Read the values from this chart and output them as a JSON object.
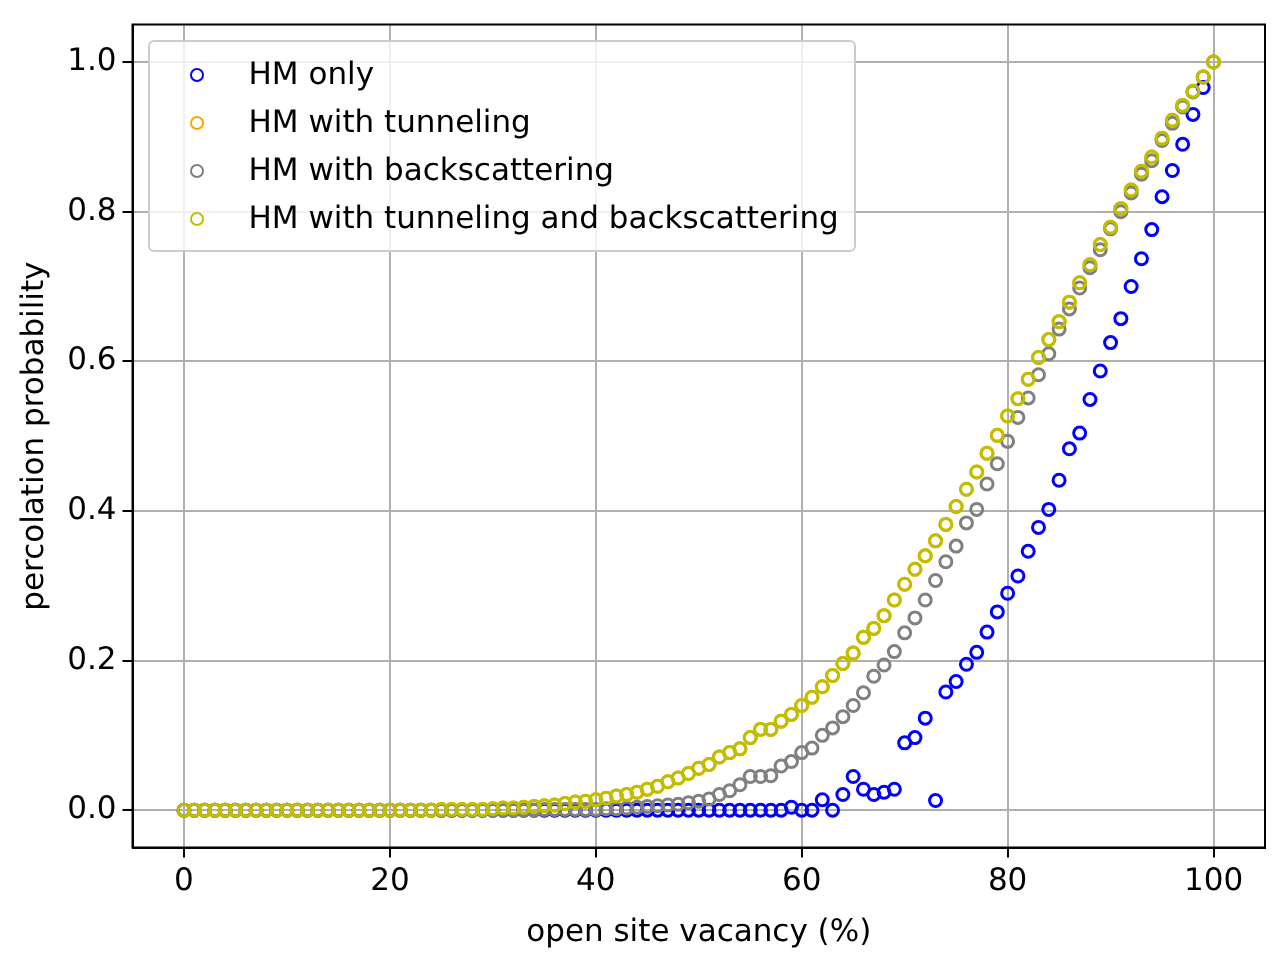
{
  "chart_data": {
    "type": "scatter",
    "xlabel": "open site vacancy (%)",
    "ylabel": "percolation probability",
    "x": [
      0,
      1,
      2,
      3,
      4,
      5,
      6,
      7,
      8,
      9,
      10,
      11,
      12,
      13,
      14,
      15,
      16,
      17,
      18,
      19,
      20,
      21,
      22,
      23,
      24,
      25,
      26,
      27,
      28,
      29,
      30,
      31,
      32,
      33,
      34,
      35,
      36,
      37,
      38,
      39,
      40,
      41,
      42,
      43,
      44,
      45,
      46,
      47,
      48,
      49,
      50,
      51,
      52,
      53,
      54,
      55,
      56,
      57,
      58,
      59,
      60,
      61,
      62,
      63,
      64,
      65,
      66,
      67,
      68,
      69,
      70,
      71,
      72,
      73,
      74,
      75,
      76,
      77,
      78,
      79,
      80,
      81,
      82,
      83,
      84,
      85,
      86,
      87,
      88,
      89,
      90,
      91,
      92,
      93,
      94,
      95,
      96,
      97,
      98,
      99,
      100
    ],
    "series": [
      {
        "name": "HM only",
        "color": "#0000ff",
        "values": [
          0,
          0,
          0,
          0,
          0,
          0,
          0,
          0,
          0,
          0,
          0,
          0,
          0,
          0,
          0,
          0,
          0,
          0,
          0,
          0,
          0,
          0,
          0,
          0,
          0,
          0,
          0,
          0,
          0,
          0,
          0,
          0,
          0,
          0,
          0,
          0,
          0,
          0,
          0,
          0,
          0,
          0,
          0,
          0,
          0,
          0,
          0,
          0,
          0,
          0,
          0,
          0,
          0,
          0,
          0,
          0,
          0,
          0,
          0,
          0.004,
          0,
          0,
          0.014,
          0,
          0.021,
          0.045,
          0.028,
          0.021,
          0.024,
          0.028,
          0.09,
          0.097,
          0.123,
          0.013,
          0.158,
          0.172,
          0.195,
          0.211,
          0.238,
          0.265,
          0.29,
          0.313,
          0.346,
          0.378,
          0.402,
          0.441,
          0.483,
          0.504,
          0.549,
          0.587,
          0.625,
          0.657,
          0.7,
          0.737,
          0.776,
          0.82,
          0.855,
          0.89,
          0.93,
          0.966,
          null
        ]
      },
      {
        "name": "HM with tunneling",
        "color": "#ffa500",
        "values": [
          0,
          0,
          0,
          0,
          0,
          0,
          0,
          0,
          0,
          0,
          0,
          0,
          0,
          0,
          0,
          0,
          0,
          0,
          0,
          0,
          0,
          0,
          0,
          0,
          0,
          0.001,
          0.001,
          0.001,
          0.001,
          0.001,
          0.002,
          0.003,
          0.003,
          0.004,
          0.005,
          0.006,
          0.007,
          0.009,
          0.011,
          0.012,
          0.014,
          0.016,
          0.019,
          0.021,
          0.024,
          0.028,
          0.032,
          0.038,
          0.043,
          0.049,
          0.056,
          0.061,
          0.071,
          0.077,
          0.082,
          0.097,
          0.108,
          0.108,
          0.119,
          0.128,
          0.14,
          0.151,
          0.165,
          0.18,
          0.196,
          0.21,
          0.231,
          0.243,
          0.26,
          0.281,
          0.302,
          0.322,
          0.34,
          0.36,
          0.382,
          0.406,
          0.429,
          0.452,
          0.477,
          0.501,
          0.527,
          0.55,
          0.576,
          0.605,
          0.629,
          0.653,
          0.679,
          0.705,
          0.729,
          0.756,
          0.779,
          0.804,
          0.829,
          0.854,
          0.873,
          0.898,
          0.922,
          0.942,
          0.961,
          0.98,
          1.0
        ]
      },
      {
        "name": "HM with backscattering",
        "color": "#808080",
        "values": [
          0,
          0,
          0,
          0,
          0,
          0,
          0,
          0,
          0,
          0,
          0,
          0,
          0,
          0,
          0,
          0,
          0,
          0,
          0,
          0,
          0,
          0,
          0,
          0,
          0,
          0,
          0,
          0,
          0,
          0,
          0,
          0,
          0,
          0,
          0,
          0.001,
          0.001,
          0.001,
          0.001,
          0.001,
          0.001,
          0.002,
          0.002,
          0.003,
          0.004,
          0.005,
          0.006,
          0.007,
          0.008,
          0.01,
          0.012,
          0.015,
          0.021,
          0.026,
          0.034,
          0.045,
          0.045,
          0.046,
          0.059,
          0.065,
          0.077,
          0.083,
          0.1,
          0.11,
          0.125,
          0.14,
          0.157,
          0.179,
          0.194,
          0.212,
          0.237,
          0.257,
          0.281,
          0.307,
          0.332,
          0.353,
          0.384,
          0.402,
          0.436,
          0.463,
          0.493,
          0.525,
          0.551,
          0.582,
          0.61,
          0.643,
          0.67,
          0.698,
          0.725,
          0.749,
          0.777,
          0.8,
          0.825,
          0.85,
          0.868,
          0.895,
          0.918,
          0.94,
          0.96,
          0.98,
          1.0
        ]
      },
      {
        "name": "HM with tunneling and backscattering",
        "color": "#bfbf00",
        "values": [
          0,
          0,
          0,
          0,
          0,
          0,
          0,
          0,
          0,
          0,
          0,
          0,
          0,
          0,
          0,
          0,
          0,
          0,
          0,
          0,
          0,
          0,
          0,
          0,
          0,
          0.001,
          0.001,
          0.001,
          0.001,
          0.001,
          0.002,
          0.003,
          0.003,
          0.004,
          0.005,
          0.006,
          0.007,
          0.009,
          0.011,
          0.012,
          0.014,
          0.016,
          0.019,
          0.021,
          0.024,
          0.028,
          0.032,
          0.038,
          0.043,
          0.049,
          0.056,
          0.061,
          0.071,
          0.077,
          0.082,
          0.097,
          0.108,
          0.108,
          0.119,
          0.128,
          0.14,
          0.151,
          0.165,
          0.18,
          0.196,
          0.21,
          0.231,
          0.243,
          0.26,
          0.281,
          0.302,
          0.322,
          0.34,
          0.36,
          0.382,
          0.406,
          0.429,
          0.452,
          0.477,
          0.501,
          0.527,
          0.55,
          0.576,
          0.605,
          0.629,
          0.653,
          0.679,
          0.705,
          0.729,
          0.756,
          0.779,
          0.804,
          0.829,
          0.854,
          0.873,
          0.898,
          0.922,
          0.942,
          0.961,
          0.98,
          1.0
        ]
      }
    ],
    "xlim": [
      -5,
      105
    ],
    "xticks": [
      0,
      20,
      40,
      60,
      80,
      100
    ],
    "ylim": [
      -0.05,
      1.05
    ],
    "yticks": [
      {
        "value": 0,
        "label": "0.0"
      },
      {
        "value": 0.2,
        "label": "0.2"
      },
      {
        "value": 0.4,
        "label": "0.4"
      },
      {
        "value": 0.6,
        "label": "0.6"
      },
      {
        "value": 0.8,
        "label": "0.8"
      },
      {
        "value": 1,
        "label": "1.0"
      }
    ],
    "grid": true,
    "legend": "top left",
    "marker": "circle"
  }
}
